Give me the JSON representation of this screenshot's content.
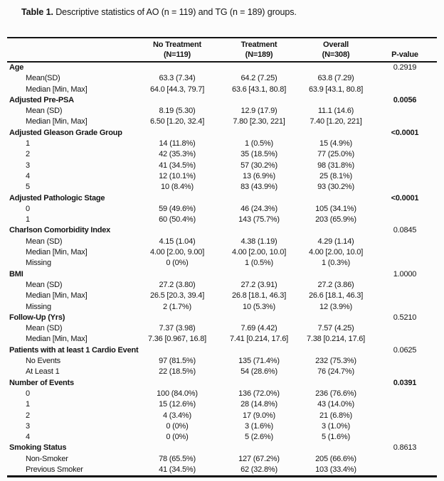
{
  "title": {
    "prefix": "Table 1.",
    "text": " Descriptive statistics of AO (n = 119) and TG (n = 189) groups."
  },
  "table": {
    "columns": [
      {
        "line1": "No Treatment",
        "line2": "(N=119)"
      },
      {
        "line1": "Treatment",
        "line2": "(N=189)"
      },
      {
        "line1": "Overall",
        "line2": "(N=308)"
      },
      {
        "line1": "",
        "line2": "P-value"
      }
    ],
    "groups": [
      {
        "label": "Age",
        "pvalue": "0.2919",
        "pbold": false,
        "rows": [
          {
            "label": "Mean(SD)",
            "values": [
              "63.3 (7.34)",
              "64.2 (7.25)",
              "63.8 (7.29)"
            ]
          },
          {
            "label": "Median [Min, Max]",
            "values": [
              "64.0 [44.3, 79.7]",
              "63.6 [43.1, 80.8]",
              "63.9 [43.1, 80.8]"
            ]
          }
        ]
      },
      {
        "label": "Adjusted Pre-PSA",
        "pvalue": "0.0056",
        "pbold": true,
        "rows": [
          {
            "label": "Mean (SD)",
            "values": [
              "8.19 (5.30)",
              "12.9 (17.9)",
              "11.1 (14.6)"
            ]
          },
          {
            "label": "Median [Min, Max]",
            "values": [
              "6.50 [1.20, 32.4]",
              "7.80 [2.30, 221]",
              "7.40 [1.20, 221]"
            ]
          }
        ]
      },
      {
        "label": "Adjusted Gleason Grade Group",
        "pvalue": "<0.0001",
        "pbold": true,
        "rows": [
          {
            "label": "1",
            "values": [
              "14 (11.8%)",
              "1 (0.5%)",
              "15 (4.9%)"
            ]
          },
          {
            "label": "2",
            "values": [
              "42 (35.3%)",
              "35 (18.5%)",
              "77 (25.0%)"
            ]
          },
          {
            "label": "3",
            "values": [
              "41 (34.5%)",
              "57 (30.2%)",
              "98 (31.8%)"
            ]
          },
          {
            "label": "4",
            "values": [
              "12 (10.1%)",
              "13 (6.9%)",
              "25 (8.1%)"
            ]
          },
          {
            "label": "5",
            "values": [
              "10 (8.4%)",
              "83 (43.9%)",
              "93 (30.2%)"
            ]
          }
        ]
      },
      {
        "label": "Adjusted Pathologic Stage",
        "pvalue": "<0.0001",
        "pbold": true,
        "rows": [
          {
            "label": "0",
            "values": [
              "59 (49.6%)",
              "46 (24.3%)",
              "105 (34.1%)"
            ]
          },
          {
            "label": "1",
            "values": [
              "60 (50.4%)",
              "143 (75.7%)",
              "203 (65.9%)"
            ]
          }
        ]
      },
      {
        "label": "Charlson Comorbidity Index",
        "pvalue": "0.0845",
        "pbold": false,
        "rows": [
          {
            "label": "Mean (SD)",
            "values": [
              "4.15 (1.04)",
              "4.38 (1.19)",
              "4.29 (1.14)"
            ]
          },
          {
            "label": "Median [Min, Max]",
            "values": [
              "4.00 [2.00, 9.00]",
              "4.00 [2.00, 10.0]",
              "4.00 [2.00, 10.0]"
            ]
          },
          {
            "label": "Missing",
            "values": [
              "0 (0%)",
              "1 (0.5%)",
              "1 (0.3%)"
            ]
          }
        ]
      },
      {
        "label": "BMI",
        "pvalue": "1.0000",
        "pbold": false,
        "rows": [
          {
            "label": "Mean (SD)",
            "values": [
              "27.2 (3.80)",
              "27.2 (3.91)",
              "27.2 (3.86)"
            ]
          },
          {
            "label": "Median [Min, Max]",
            "values": [
              "26.5 [20.3, 39.4]",
              "26.8 [18.1, 46.3]",
              "26.6 [18.1, 46.3]"
            ]
          },
          {
            "label": "Missing",
            "values": [
              "2 (1.7%)",
              "10 (5.3%)",
              "12 (3.9%)"
            ]
          }
        ]
      },
      {
        "label": "Follow-Up (Yrs)",
        "pvalue": "0.5210",
        "pbold": false,
        "rows": [
          {
            "label": "Mean (SD)",
            "values": [
              "7.37 (3.98)",
              "7.69 (4.42)",
              "7.57 (4.25)"
            ]
          },
          {
            "label": "Median [Min, Max]",
            "values": [
              "7.36 [0.967, 16.8]",
              "7.41 [0.214, 17.6]",
              "7.38 [0.214, 17.6]"
            ]
          }
        ]
      },
      {
        "label": "Patients with at least 1 Cardio Event",
        "pvalue": "0.0625",
        "pbold": false,
        "rows": [
          {
            "label": "No Events",
            "values": [
              "97 (81.5%)",
              "135 (71.4%)",
              "232 (75.3%)"
            ]
          },
          {
            "label": "At Least 1",
            "values": [
              "22 (18.5%)",
              "54 (28.6%)",
              "76 (24.7%)"
            ]
          }
        ]
      },
      {
        "label": "Number of Events",
        "pvalue": "0.0391",
        "pbold": true,
        "rows": [
          {
            "label": "0",
            "values": [
              "100 (84.0%)",
              "136 (72.0%)",
              "236 (76.6%)"
            ]
          },
          {
            "label": "1",
            "values": [
              "15 (12.6%)",
              "28 (14.8%)",
              "43 (14.0%)"
            ]
          },
          {
            "label": "2",
            "values": [
              "4 (3.4%)",
              "17 (9.0%)",
              "21 (6.8%)"
            ]
          },
          {
            "label": "3",
            "values": [
              "0 (0%)",
              "3 (1.6%)",
              "3 (1.0%)"
            ]
          },
          {
            "label": "4",
            "values": [
              "0 (0%)",
              "5 (2.6%)",
              "5 (1.6%)"
            ]
          }
        ]
      },
      {
        "label": "Smoking Status",
        "pvalue": "0.8613",
        "pbold": false,
        "rows": [
          {
            "label": "Non-Smoker",
            "values": [
              "78 (65.5%)",
              "127 (67.2%)",
              "205 (66.6%)"
            ]
          },
          {
            "label": "Previous Smoker",
            "values": [
              "41 (34.5%)",
              "62 (32.8%)",
              "103 (33.4%)"
            ]
          }
        ]
      }
    ]
  }
}
